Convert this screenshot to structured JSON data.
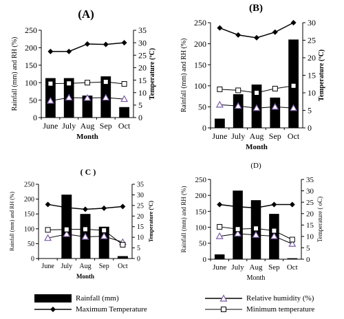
{
  "chart_data": [
    {
      "id": "A",
      "panel_label": "(A)",
      "type": "bar+line",
      "categories": [
        "June",
        "July",
        "Aug",
        "Sep",
        "Oct"
      ],
      "xlabel": "Month",
      "ylabel_left": "Rainfall (mm) and RH (%)",
      "ylabel_right": "Temperature (ºC)",
      "ylim_left": [
        0,
        250
      ],
      "yticks_left": [
        0,
        50,
        100,
        150,
        200,
        250
      ],
      "ylim_right": [
        0,
        35
      ],
      "yticks_right": [
        0,
        5,
        10,
        15,
        20,
        25,
        30,
        35
      ],
      "series": [
        {
          "key": "rainfall",
          "axis": "left",
          "kind": "bar",
          "values": [
            113,
            113,
            63,
            118,
            30
          ]
        },
        {
          "key": "rh",
          "axis": "left",
          "kind": "line-triangle",
          "values": [
            48,
            57,
            56,
            57,
            53
          ]
        },
        {
          "key": "tmax",
          "axis": "right",
          "kind": "line-diamond",
          "values": [
            26.5,
            26.5,
            29.5,
            29.3,
            30
          ]
        },
        {
          "key": "tmin",
          "axis": "right",
          "kind": "line-square",
          "values": [
            13.6,
            13.7,
            14,
            14.3,
            13.5
          ]
        }
      ]
    },
    {
      "id": "B",
      "panel_label": "(B)",
      "type": "bar+line",
      "categories": [
        "June",
        "July",
        "Aug",
        "Sep",
        "Oct"
      ],
      "xlabel": "Month",
      "ylabel_left": "Rainfall (mm) and RH (%)",
      "ylabel_right": "Temperature (ºC)",
      "ylim_left": [
        0,
        250
      ],
      "yticks_left": [
        0,
        50,
        100,
        150,
        200,
        250
      ],
      "ylim_right": [
        0,
        30
      ],
      "yticks_right": [
        0,
        5,
        10,
        15,
        20,
        25,
        30
      ],
      "series": [
        {
          "key": "rainfall",
          "axis": "left",
          "kind": "bar",
          "values": [
            22,
            80,
            103,
            72,
            210
          ]
        },
        {
          "key": "rh",
          "axis": "left",
          "kind": "line-triangle",
          "values": [
            55,
            52,
            47,
            50,
            47
          ]
        },
        {
          "key": "tmax",
          "axis": "right",
          "kind": "line-diamond",
          "values": [
            28.5,
            26.5,
            25.7,
            27.3,
            30
          ]
        },
        {
          "key": "tmin",
          "axis": "right",
          "kind": "line-square",
          "values": [
            11,
            10.7,
            10,
            11.2,
            12
          ]
        }
      ]
    },
    {
      "id": "C",
      "panel_label": "( C )",
      "type": "bar+line",
      "categories": [
        "June",
        "July",
        "Aug",
        "Sep",
        "Oct"
      ],
      "xlabel": "Month",
      "ylabel_left": "Rainfall (mm) and RH (%)",
      "ylabel_right": "Temperature (ºC)",
      "ylim_left": [
        0,
        250
      ],
      "yticks_left": [
        0,
        50,
        100,
        150,
        200,
        250
      ],
      "ylim_right": [
        0,
        35
      ],
      "yticks_right": [
        0,
        5,
        10,
        15,
        20,
        25,
        30,
        35
      ],
      "series": [
        {
          "key": "rainfall",
          "axis": "left",
          "kind": "bar",
          "values": [
            0,
            215,
            150,
            107,
            8
          ]
        },
        {
          "key": "rh",
          "axis": "left",
          "kind": "line-triangle",
          "values": [
            69,
            82,
            73,
            75,
            55
          ]
        },
        {
          "key": "tmax",
          "axis": "right",
          "kind": "line-diamond",
          "values": [
            25.5,
            24,
            23.2,
            23.7,
            24.5
          ]
        },
        {
          "key": "tmin",
          "axis": "right",
          "kind": "line-square",
          "values": [
            13.5,
            13.7,
            13.8,
            13.3,
            6.5
          ]
        }
      ]
    },
    {
      "id": "D",
      "panel_label": "(D)",
      "type": "bar+line",
      "categories": [
        "June",
        "July",
        "Aug",
        "Sep",
        "Oct"
      ],
      "xlabel": "Month",
      "ylabel_left": "Rainfall (mm) and RH (%)",
      "ylabel_right": "Temperature ( oC)",
      "ylim_left": [
        0,
        250
      ],
      "yticks_left": [
        0,
        50,
        100,
        150,
        200,
        250
      ],
      "ylim_right": [
        0,
        35
      ],
      "yticks_right": [
        0,
        5,
        10,
        15,
        20,
        25,
        30,
        35
      ],
      "series": [
        {
          "key": "rainfall",
          "axis": "left",
          "kind": "bar",
          "values": [
            15,
            215,
            185,
            142,
            3
          ]
        },
        {
          "key": "rh",
          "axis": "left",
          "kind": "line-triangle",
          "values": [
            72,
            80,
            76,
            72,
            48
          ]
        },
        {
          "key": "tmax",
          "axis": "right",
          "kind": "line-diamond",
          "values": [
            24,
            23,
            22.5,
            24,
            24
          ]
        },
        {
          "key": "tmin",
          "axis": "right",
          "kind": "line-square",
          "values": [
            14.2,
            13.2,
            13.5,
            12.5,
            8.6
          ]
        }
      ]
    }
  ],
  "legend": {
    "rainfall": "Rainfall (mm)",
    "rh": "Relative humidity (%)",
    "tmax": "Maximum Temperature",
    "tmin": "Minimum temperature"
  }
}
